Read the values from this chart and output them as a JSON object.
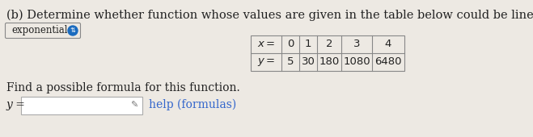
{
  "title": "(b) Determine whether function whose values are given in the table below could be linear or exponential.",
  "answer_label": "exponential",
  "table_x_label": "x =",
  "table_y_label": "y =",
  "table_x_values": [
    "0",
    "1",
    "2",
    "3",
    "4"
  ],
  "table_y_values": [
    "5",
    "30",
    "180",
    "1080",
    "6480"
  ],
  "find_formula_text": "Find a possible formula for this function.",
  "y_equals": "y =",
  "help_text": "help (formulas)",
  "bg_color": "#ede9e3",
  "text_color": "#222222",
  "table_border_color": "#888888",
  "input_box_color": "#ffffff",
  "badge_bg": "#1a6bbf",
  "badge_text_color": "#ffffff",
  "title_fontsize": 10.5,
  "body_fontsize": 10.0,
  "table_fontsize": 9.5
}
